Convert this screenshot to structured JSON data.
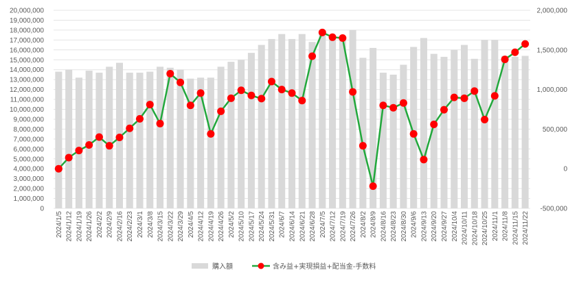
{
  "chart_data": {
    "type": "bar+line",
    "colors": {
      "bar": "#d9d9d9",
      "line": "#22a83c",
      "marker": "#ff0000",
      "grid": "#e4e4e4",
      "text": "#595959"
    },
    "categories": [
      "2024/1/5",
      "2024/1/12",
      "2024/1/19",
      "2024/1/26",
      "2024/2/2",
      "2024/2/9",
      "2024/2/16",
      "2024/2/23",
      "2024/3/1",
      "2024/3/8",
      "2024/3/15",
      "2024/3/22",
      "2024/3/29",
      "2024/4/5",
      "2024/4/12",
      "2024/4/19",
      "2024/4/26",
      "2024/5/2",
      "2024/5/10",
      "2024/5/17",
      "2024/5/24",
      "2024/5/31",
      "2024/6/7",
      "2024/6/14",
      "2024/6/21",
      "2024/6/28",
      "2024/7/5",
      "2024/7/12",
      "2024/7/19",
      "2024/7/26",
      "2024/8/2",
      "2024/8/9",
      "2024/8/16",
      "2024/8/23",
      "2024/8/30",
      "2024/9/6",
      "2024/9/13",
      "2024/9/20",
      "2024/9/27",
      "2024/10/4",
      "2024/10/11",
      "2024/10/18",
      "2024/10/25",
      "2024/11/1",
      "2024/11/8",
      "2024/11/15",
      "2024/11/22"
    ],
    "series": [
      {
        "name": "購入額",
        "type": "bar",
        "axis": "left",
        "values": [
          13800000,
          14000000,
          13200000,
          13900000,
          13700000,
          14300000,
          14700000,
          13700000,
          13700000,
          13800000,
          14300000,
          14200000,
          14000000,
          13100000,
          13200000,
          13200000,
          14300000,
          14800000,
          15000000,
          15700000,
          16500000,
          17100000,
          17600000,
          17100000,
          17600000,
          16800000,
          17700000,
          17200000,
          17200000,
          18000000,
          15200000,
          16200000,
          13700000,
          13500000,
          14500000,
          16300000,
          17200000,
          15600000,
          15300000,
          16000000,
          16500000,
          15100000,
          17000000,
          17000000,
          15400000,
          15300000,
          15400000
        ]
      },
      {
        "name": "含み益+実現損益+配当金-手数料",
        "type": "line",
        "axis": "right",
        "values": [
          0,
          140000,
          230000,
          300000,
          400000,
          290000,
          395000,
          510000,
          630000,
          810000,
          570000,
          1200000,
          1090000,
          800000,
          955000,
          440000,
          725000,
          890000,
          990000,
          925000,
          885000,
          1100000,
          1000000,
          955000,
          860000,
          1420000,
          1720000,
          1660000,
          1650000,
          970000,
          290000,
          -220000,
          800000,
          770000,
          830000,
          440000,
          115000,
          560000,
          745000,
          900000,
          890000,
          980000,
          620000,
          920000,
          1380000,
          1470000,
          1575000
        ]
      }
    ],
    "y_left": {
      "min": 0,
      "max": 20000000,
      "step": 1000000,
      "ticks": [
        "0",
        "1,000,000",
        "2,000,000",
        "3,000,000",
        "4,000,000",
        "5,000,000",
        "6,000,000",
        "7,000,000",
        "8,000,000",
        "9,000,000",
        "10,000,000",
        "11,000,000",
        "12,000,000",
        "13,000,000",
        "14,000,000",
        "15,000,000",
        "16,000,000",
        "17,000,000",
        "18,000,000",
        "19,000,000",
        "20,000,000"
      ]
    },
    "y_right": {
      "min": -500000,
      "max": 2000000,
      "step": 500000,
      "ticks": [
        "-500,000",
        "0",
        "500,000",
        "1,000,000",
        "1,500,000",
        "2,000,000"
      ]
    },
    "grid": true,
    "legend_position": "bottom"
  }
}
